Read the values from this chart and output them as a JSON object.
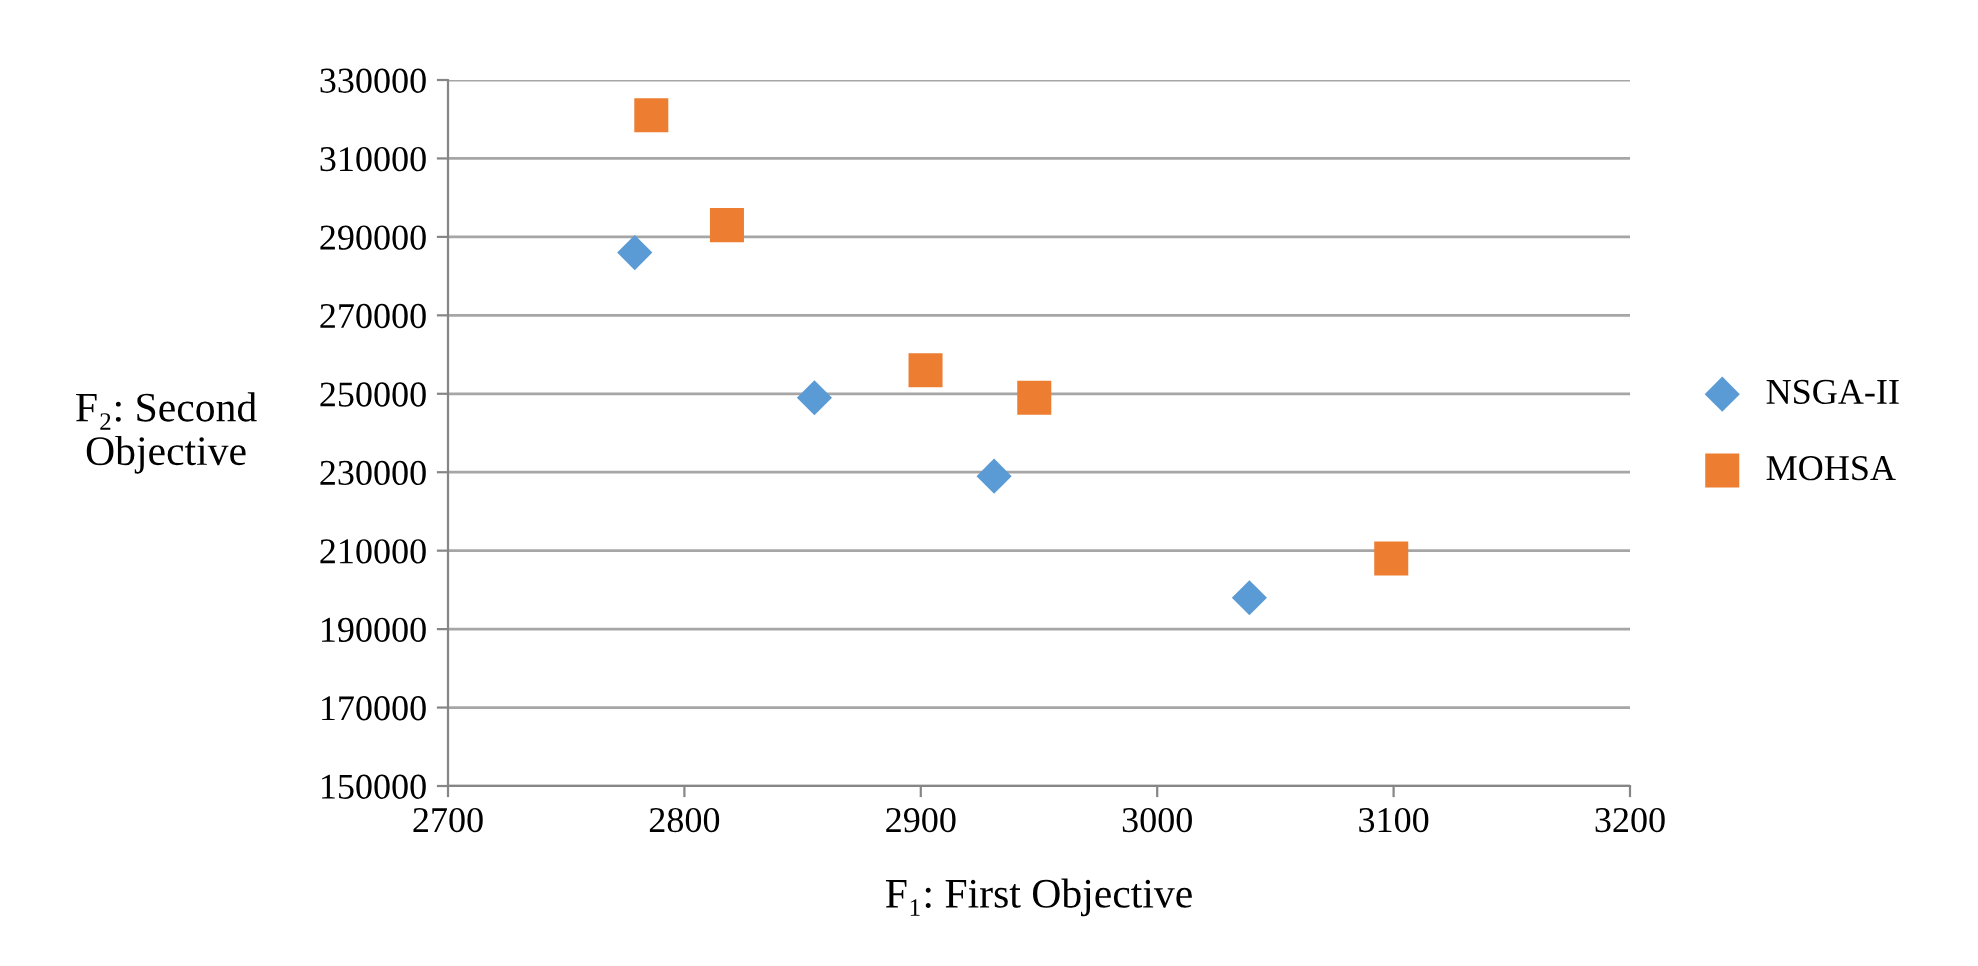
{
  "chart_data": {
    "type": "scatter",
    "xlabel": "F₁: First Objective",
    "ylabel": "F₂: Second\nObjective",
    "xlim": [
      2700,
      3200
    ],
    "xticks": [
      2700,
      2800,
      2900,
      3000,
      3100,
      3200
    ],
    "ylim": [
      150000,
      330000
    ],
    "yticks": [
      150000,
      170000,
      190000,
      210000,
      230000,
      250000,
      270000,
      290000,
      310000,
      330000
    ],
    "grid": "y",
    "legend": "right",
    "series": [
      {
        "name": "NSGA-II",
        "color": "#5b9bd5",
        "marker": "diamond",
        "x": [
          2779,
          2855,
          2931,
          3039
        ],
        "values": [
          286000,
          249000,
          229000,
          198000
        ]
      },
      {
        "name": "MOHSA",
        "color": "#ed7d31",
        "marker": "square",
        "x": [
          2786,
          2818,
          2902,
          2948,
          3099
        ],
        "values": [
          321000,
          293000,
          256000,
          249000,
          208000
        ]
      }
    ]
  }
}
